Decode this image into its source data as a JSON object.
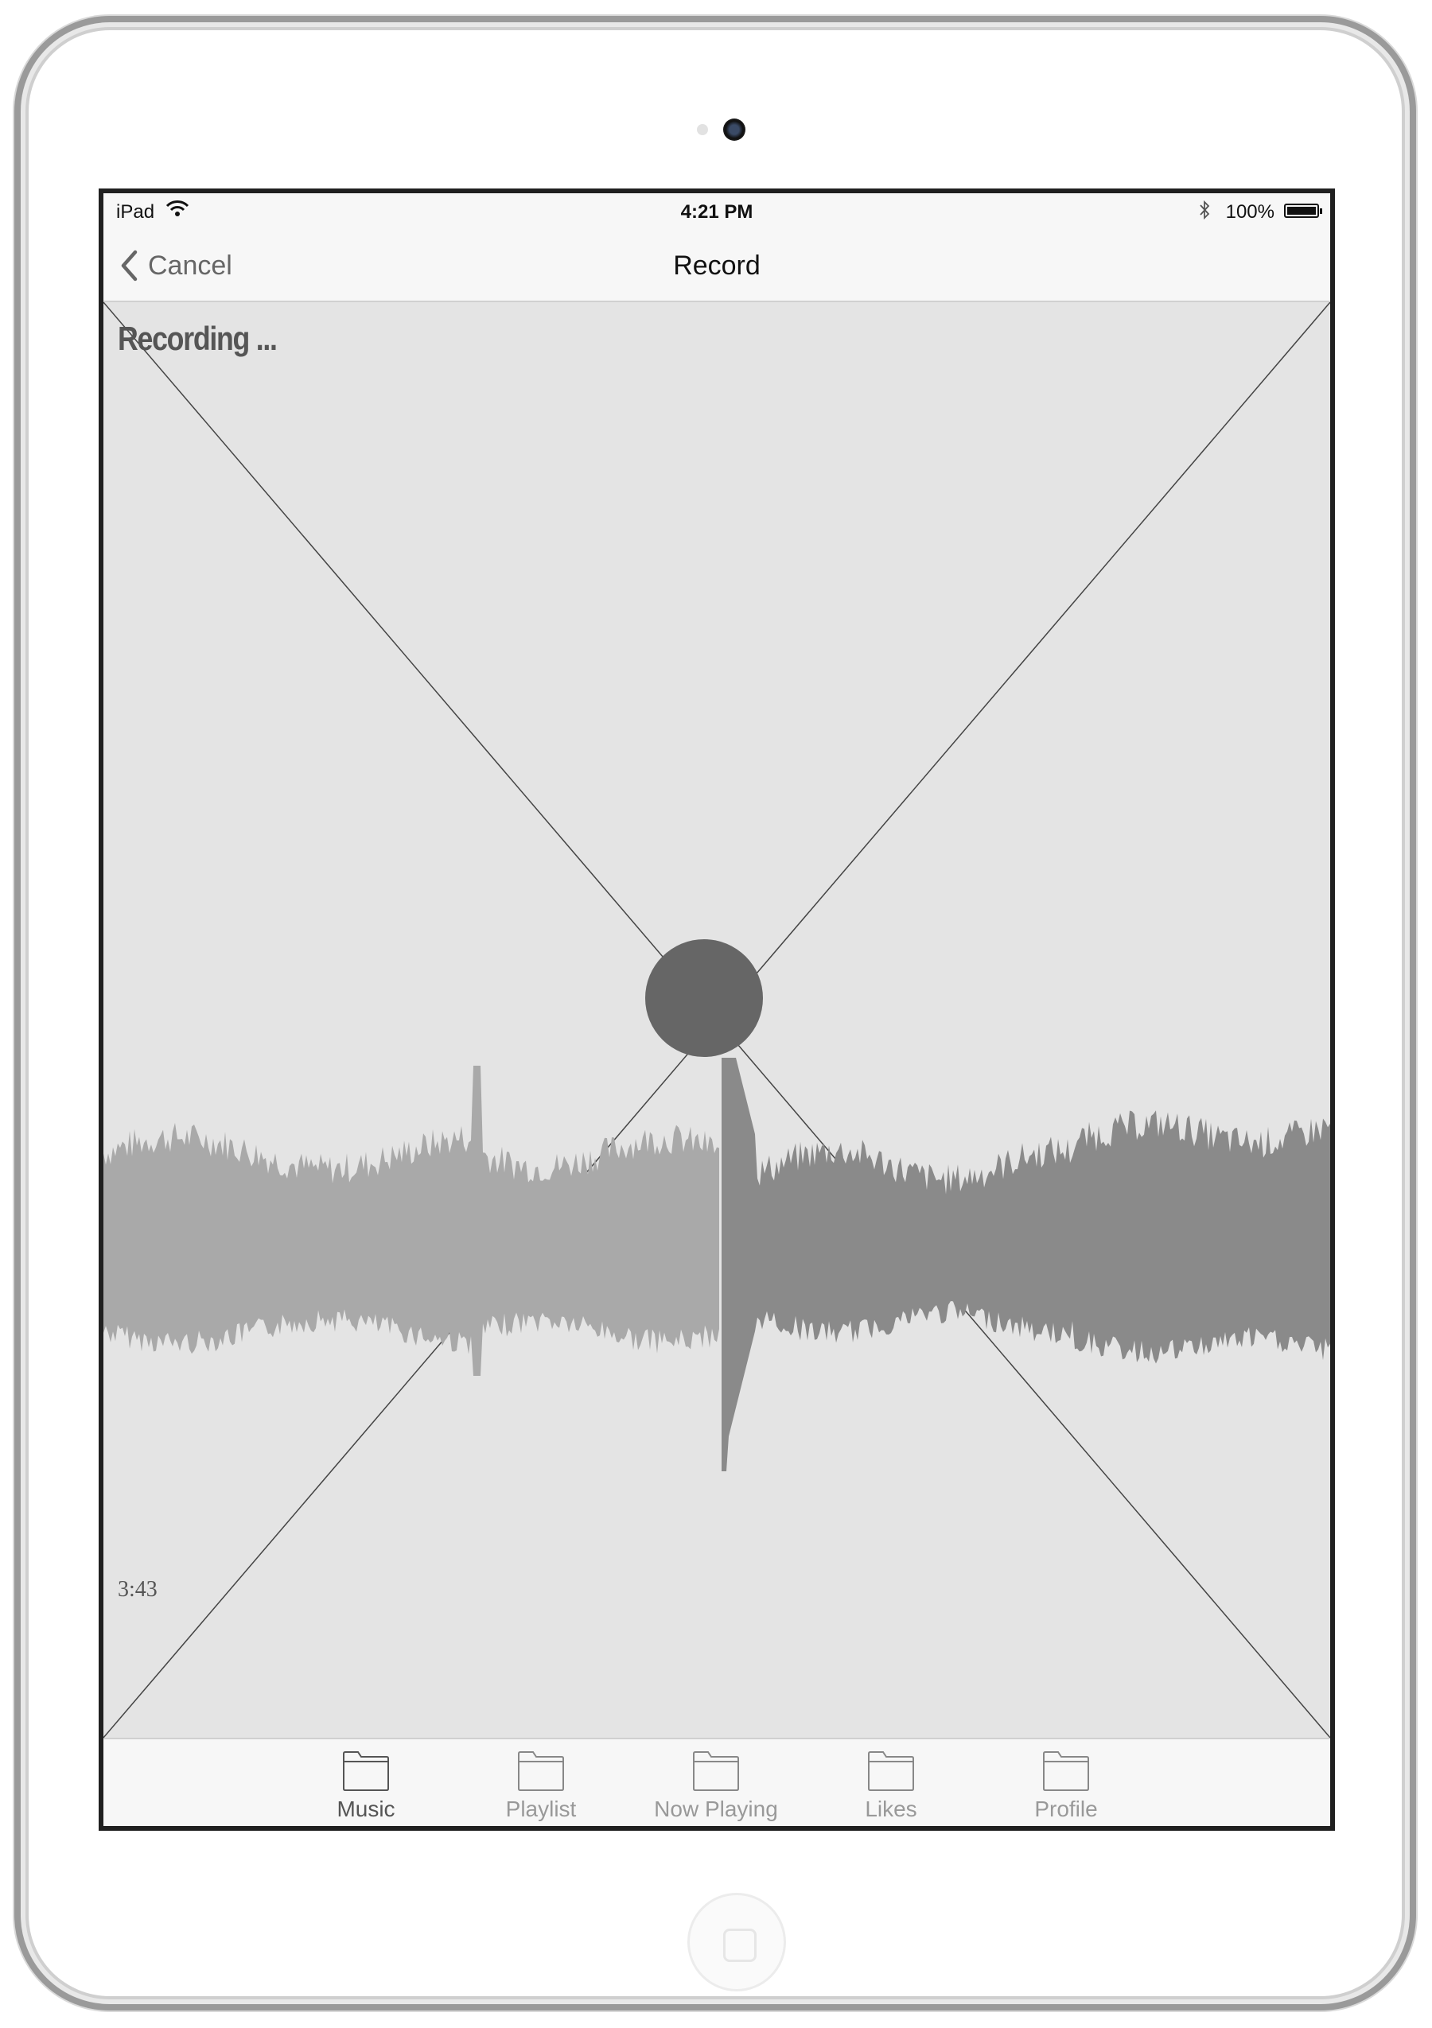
{
  "status_bar": {
    "carrier": "iPad",
    "time": "4:21 PM",
    "battery_percent": "100%",
    "battery_level": 1.0,
    "icons": [
      "wifi-icon",
      "bluetooth-icon",
      "battery-icon"
    ]
  },
  "nav": {
    "back_label": "Cancel",
    "title": "Record"
  },
  "content": {
    "recording_label": "Recording ...",
    "elapsed_time": "3:43",
    "record_button_icon": "record-circle-icon"
  },
  "tabs": [
    {
      "label": "Music",
      "icon": "folder-icon",
      "active": true
    },
    {
      "label": "Playlist",
      "icon": "folder-icon",
      "active": false
    },
    {
      "label": "Now Playing",
      "icon": "folder-icon",
      "active": false
    },
    {
      "label": "Likes",
      "icon": "folder-icon",
      "active": false
    },
    {
      "label": "Profile",
      "icon": "folder-icon",
      "active": false
    }
  ],
  "colors": {
    "waveform_played": "#a9a9a9",
    "waveform_remaining": "#8a8a8a",
    "record_button": "#666666",
    "placeholder_background": "#e4e4e4"
  }
}
